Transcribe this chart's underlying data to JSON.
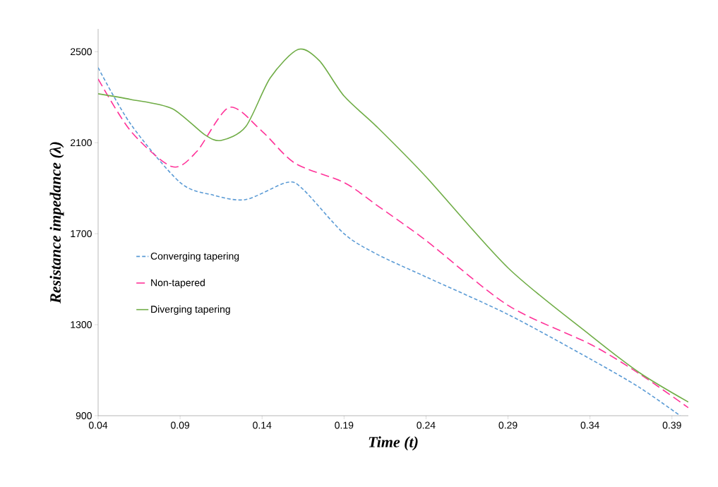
{
  "chart_data": {
    "type": "line",
    "xlabel": "Time (t)",
    "ylabel": "Resistance impedance (λ)",
    "xlim": [
      0.04,
      0.4
    ],
    "ylim": [
      900,
      2600
    ],
    "xticks": [
      0.04,
      0.09,
      0.14,
      0.19,
      0.24,
      0.29,
      0.34,
      0.39
    ],
    "yticks": [
      900,
      1300,
      1700,
      2100,
      2500
    ],
    "grid": false,
    "legend": "left",
    "marker": "none",
    "series": [
      {
        "name": "Converging tapering",
        "color": "#5b9bd5",
        "line_style": "dotted",
        "x": [
          0.04,
          0.06,
          0.09,
          0.11,
          0.13,
          0.155,
          0.165,
          0.19,
          0.21,
          0.24,
          0.29,
          0.34,
          0.37,
          0.395
        ],
        "values": [
          2430,
          2180,
          1925,
          1870,
          1850,
          1925,
          1895,
          1700,
          1610,
          1510,
          1345,
          1150,
          1025,
          900
        ]
      },
      {
        "name": "Non-tapered",
        "color": "#ff3399",
        "line_style": "dashed",
        "x": [
          0.04,
          0.06,
          0.085,
          0.1,
          0.12,
          0.14,
          0.16,
          0.19,
          0.21,
          0.24,
          0.29,
          0.34,
          0.37,
          0.4
        ],
        "values": [
          2380,
          2150,
          1995,
          2060,
          2255,
          2150,
          2010,
          1925,
          1825,
          1670,
          1385,
          1215,
          1085,
          935
        ]
      },
      {
        "name": "Diverging tapering",
        "color": "#70ad47",
        "line_style": "solid",
        "x": [
          0.04,
          0.06,
          0.085,
          0.105,
          0.115,
          0.13,
          0.145,
          0.162,
          0.175,
          0.19,
          0.21,
          0.24,
          0.29,
          0.34,
          0.37,
          0.4
        ],
        "values": [
          2315,
          2290,
          2250,
          2135,
          2110,
          2170,
          2385,
          2510,
          2460,
          2305,
          2170,
          1950,
          1550,
          1255,
          1090,
          960
        ]
      }
    ]
  }
}
